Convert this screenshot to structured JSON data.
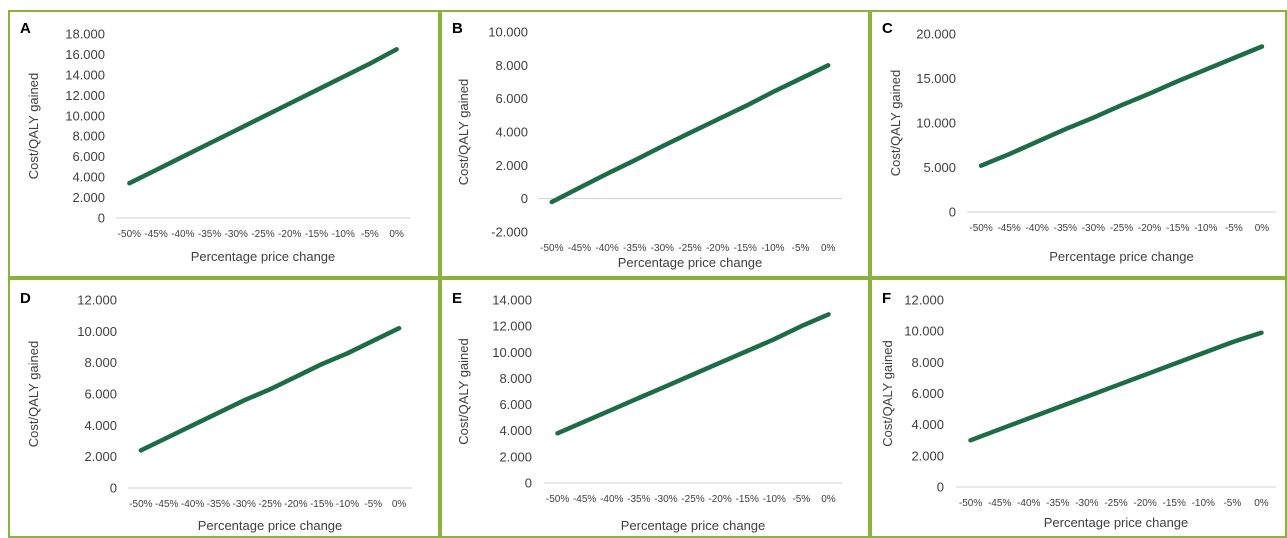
{
  "colors": {
    "line": "#1e6b47",
    "panel_border": "#8cb23e",
    "axis": "#d0d0d0",
    "text": "#404040"
  },
  "chart_data": [
    {
      "type": "line",
      "panel": "A",
      "xlabel": "Percentage price change",
      "ylabel": "Cost/QALY gained",
      "x": [
        "-50%",
        "-45%",
        "-40%",
        "-35%",
        "-30%",
        "-25%",
        "-20%",
        "-15%",
        "-10%",
        "-5%",
        "0%"
      ],
      "y": [
        3400,
        4700,
        6000,
        7300,
        8600,
        9900,
        11200,
        12500,
        13800,
        15100,
        16500
      ],
      "ylim": [
        0,
        18000
      ],
      "yticks": [
        "0",
        "2.000",
        "4.000",
        "6.000",
        "8.000",
        "10.000",
        "12.000",
        "14.000",
        "16.000",
        "18.000"
      ],
      "grid": false
    },
    {
      "type": "line",
      "panel": "B",
      "xlabel": "Percentage price change",
      "ylabel": "Cost/QALY gained",
      "x": [
        "-50%",
        "-45%",
        "-40%",
        "-35%",
        "-30%",
        "-25%",
        "-20%",
        "-15%",
        "-10%",
        "-5%",
        "0%"
      ],
      "y": [
        -200,
        650,
        1500,
        2300,
        3150,
        3950,
        4750,
        5550,
        6400,
        7200,
        8000
      ],
      "ylim": [
        -2000,
        10000
      ],
      "yticks": [
        "-2.000",
        "0",
        "2.000",
        "4.000",
        "6.000",
        "8.000",
        "10.000"
      ],
      "grid": false
    },
    {
      "type": "line",
      "panel": "C",
      "xlabel": "Percentage price change",
      "ylabel": "Cost/QALY gained",
      "x": [
        "-50%",
        "-45%",
        "-40%",
        "-35%",
        "-30%",
        "-25%",
        "-20%",
        "-15%",
        "-10%",
        "-5%",
        "0%"
      ],
      "y": [
        5200,
        6500,
        7900,
        9300,
        10600,
        12000,
        13300,
        14700,
        16000,
        17300,
        18600
      ],
      "ylim": [
        0,
        20000
      ],
      "yticks": [
        "0",
        "5.000",
        "10.000",
        "15.000",
        "20.000"
      ],
      "grid": false
    },
    {
      "type": "line",
      "panel": "D",
      "xlabel": "Percentage price change",
      "ylabel": "Cost/QALY gained",
      "x": [
        "-50%",
        "-45%",
        "-40%",
        "-35%",
        "-30%",
        "-25%",
        "-20%",
        "-15%",
        "-10%",
        "-5%",
        "0%"
      ],
      "y": [
        2400,
        3200,
        4000,
        4800,
        5600,
        6300,
        7100,
        7900,
        8600,
        9400,
        10200
      ],
      "ylim": [
        0,
        12000
      ],
      "yticks": [
        "0",
        "2.000",
        "4.000",
        "6.000",
        "8.000",
        "10.000",
        "12.000"
      ],
      "grid": false
    },
    {
      "type": "line",
      "panel": "E",
      "xlabel": "Percentage price change",
      "ylabel": "Cost/QALY gained",
      "x": [
        "-50%",
        "-45%",
        "-40%",
        "-35%",
        "-30%",
        "-25%",
        "-20%",
        "-15%",
        "-10%",
        "-5%",
        "0%"
      ],
      "y": [
        3800,
        4700,
        5600,
        6500,
        7400,
        8300,
        9200,
        10100,
        11000,
        12000,
        12900
      ],
      "ylim": [
        0,
        14000
      ],
      "yticks": [
        "0",
        "2.000",
        "4.000",
        "6.000",
        "8.000",
        "10.000",
        "12.000",
        "14.000"
      ],
      "grid": false
    },
    {
      "type": "line",
      "panel": "F",
      "xlabel": "Percentage price change",
      "ylabel": "Cost/QALY gained",
      "x": [
        "-50%",
        "-45%",
        "-40%",
        "-35%",
        "-30%",
        "-25%",
        "-20%",
        "-15%",
        "-10%",
        "-5%",
        "0%"
      ],
      "y": [
        3000,
        3700,
        4400,
        5100,
        5800,
        6500,
        7200,
        7900,
        8600,
        9300,
        9900
      ],
      "ylim": [
        0,
        12000
      ],
      "yticks": [
        "0",
        "2.000",
        "4.000",
        "6.000",
        "8.000",
        "10.000",
        "12.000"
      ],
      "grid": false
    }
  ]
}
